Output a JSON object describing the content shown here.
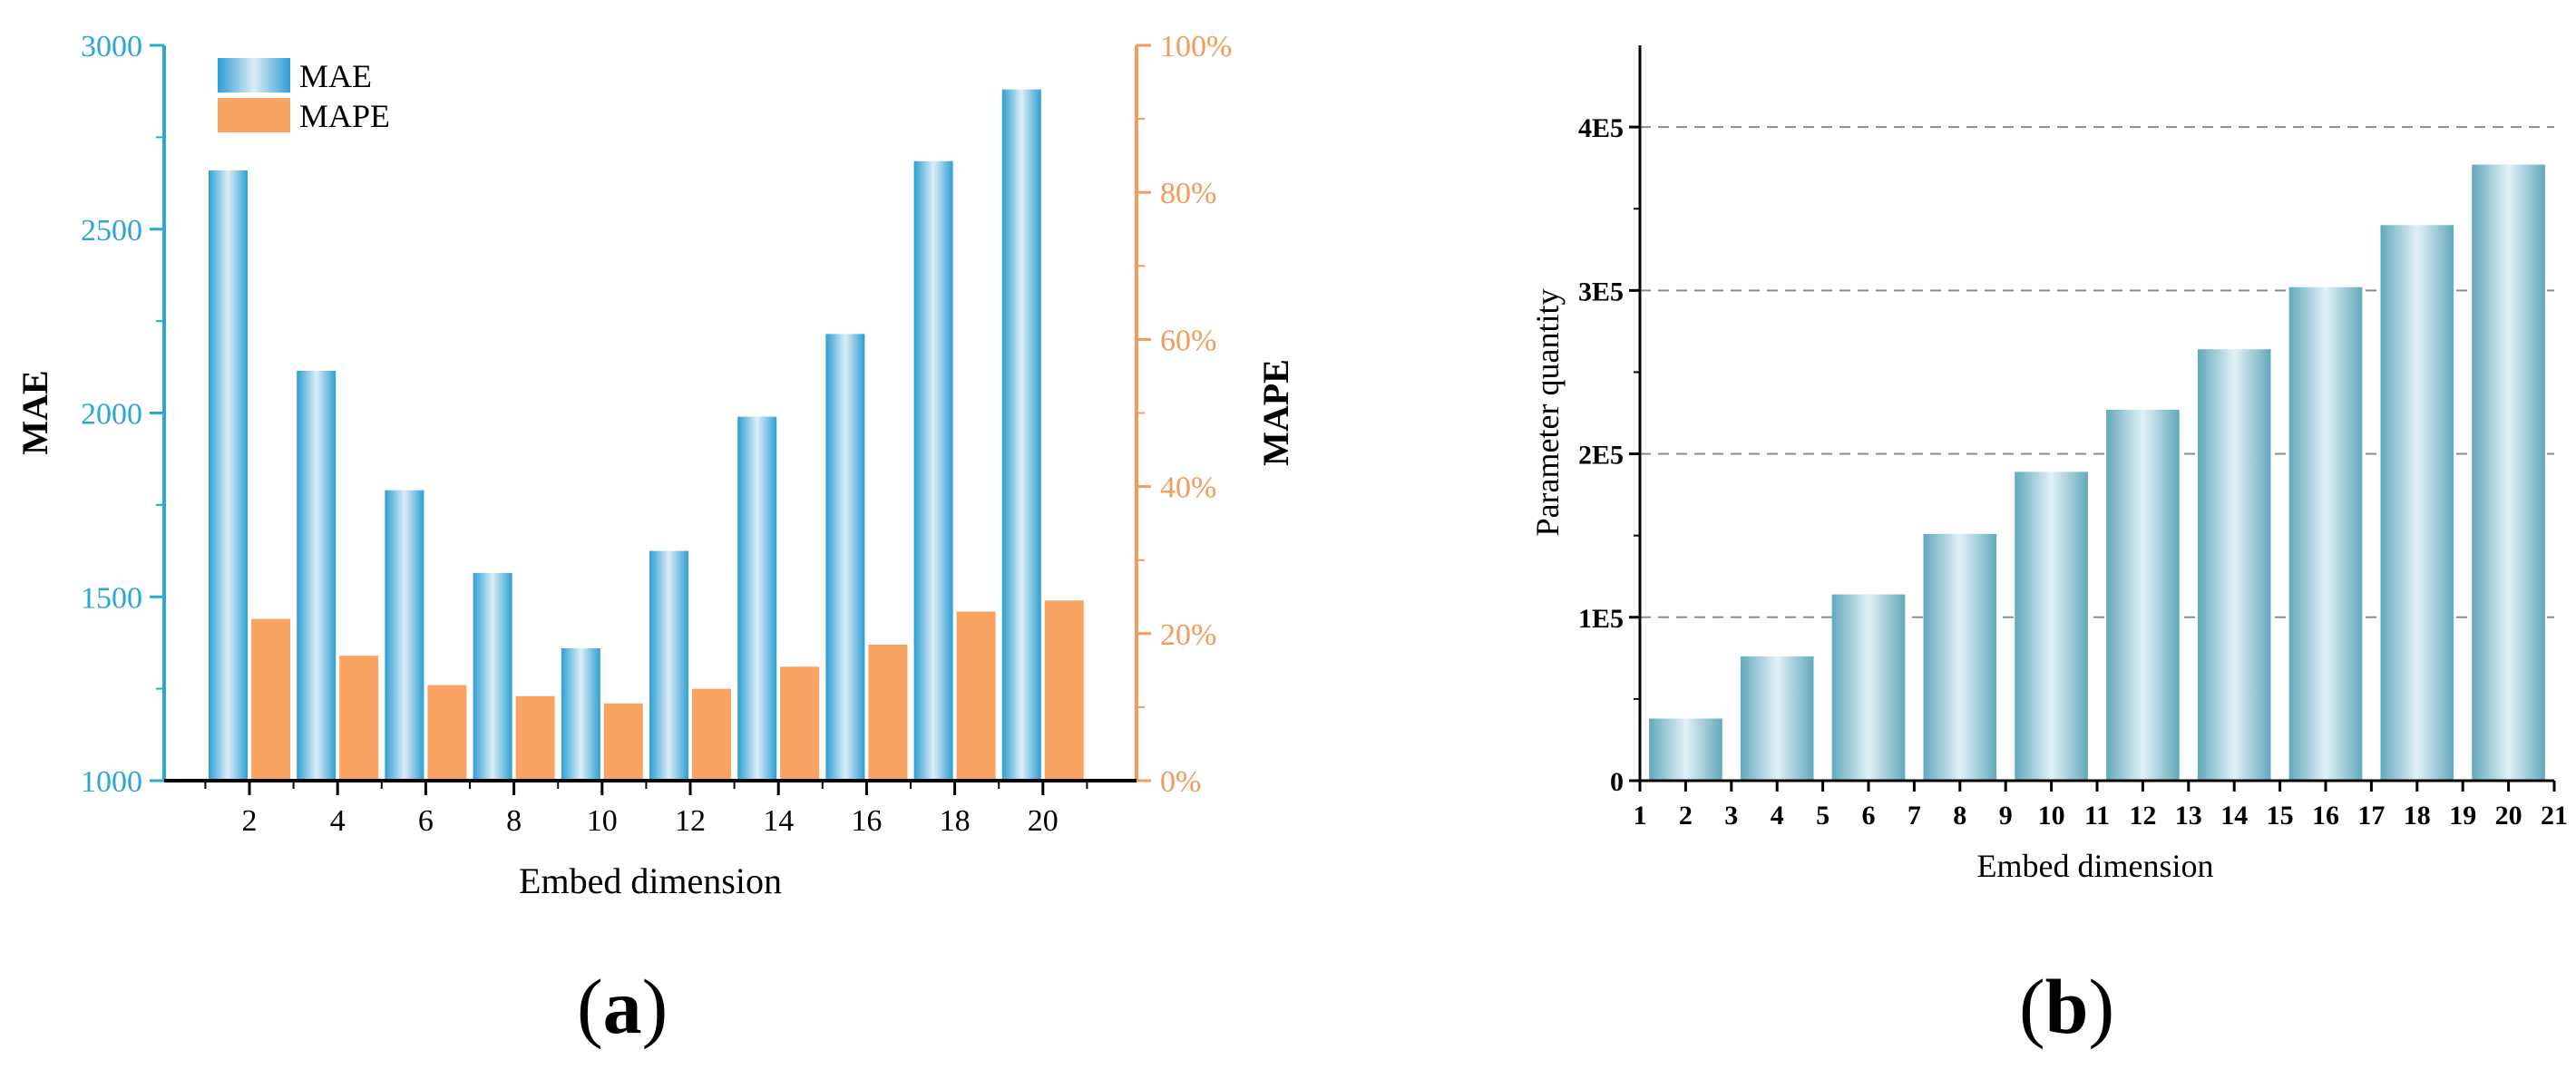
{
  "chart_data": [
    {
      "type": "bar",
      "panel": "a",
      "xlabel": "Embed dimension",
      "ylabel_left": "MAE",
      "ylabel_right": "MAPE",
      "categories": [
        "2",
        "4",
        "6",
        "8",
        "10",
        "12",
        "14",
        "16",
        "18",
        "20"
      ],
      "ylim_left": [
        1000,
        3000
      ],
      "yticks_left": [
        "1000",
        "1500",
        "2000",
        "2500",
        "3000"
      ],
      "ylim_right": [
        0,
        100
      ],
      "yticks_right": [
        "0%",
        "20%",
        "40%",
        "60%",
        "80%",
        "100%"
      ],
      "series": [
        {
          "name": "MAE",
          "axis": "left",
          "values": [
            2660,
            2115,
            1790,
            1565,
            1360,
            1625,
            1990,
            2215,
            2685,
            2880
          ]
        },
        {
          "name": "MAPE",
          "axis": "right",
          "values": [
            22,
            17,
            13,
            11.5,
            10.5,
            12.5,
            15.5,
            18.5,
            23,
            24.5
          ]
        }
      ],
      "legend": [
        "MAE",
        "MAPE"
      ],
      "legend_position": "top-left",
      "colors": {
        "left_axis": "#2aa7d3",
        "right_axis": "#f29b5a",
        "mae_bar_edge": "#2e9fd2",
        "mae_bar_light": "#d9ecf7",
        "mape_bar": "#f9a463"
      }
    },
    {
      "type": "bar",
      "panel": "b",
      "xlabel": "Embed dimension",
      "ylabel": "Parameter quantity",
      "x_ticks": [
        "1",
        "2",
        "3",
        "4",
        "5",
        "6",
        "7",
        "8",
        "9",
        "10",
        "11",
        "12",
        "13",
        "14",
        "15",
        "16",
        "17",
        "18",
        "19",
        "20",
        "21"
      ],
      "categories": [
        "2",
        "4",
        "6",
        "8",
        "10",
        "12",
        "14",
        "16",
        "18",
        "20"
      ],
      "values": [
        38000,
        76000,
        114000,
        151000,
        189000,
        227000,
        264000,
        302000,
        340000,
        377000
      ],
      "ylim": [
        0,
        450000
      ],
      "yticks": [
        "0",
        "1E5",
        "2E5",
        "3E5",
        "4E5"
      ],
      "grid": true,
      "colors": {
        "bar_edge": "#62a9bc",
        "bar_light": "#e3f1f7",
        "grid": "#8c8c8c"
      }
    }
  ],
  "panel_labels": {
    "a": "a",
    "b": "b"
  }
}
